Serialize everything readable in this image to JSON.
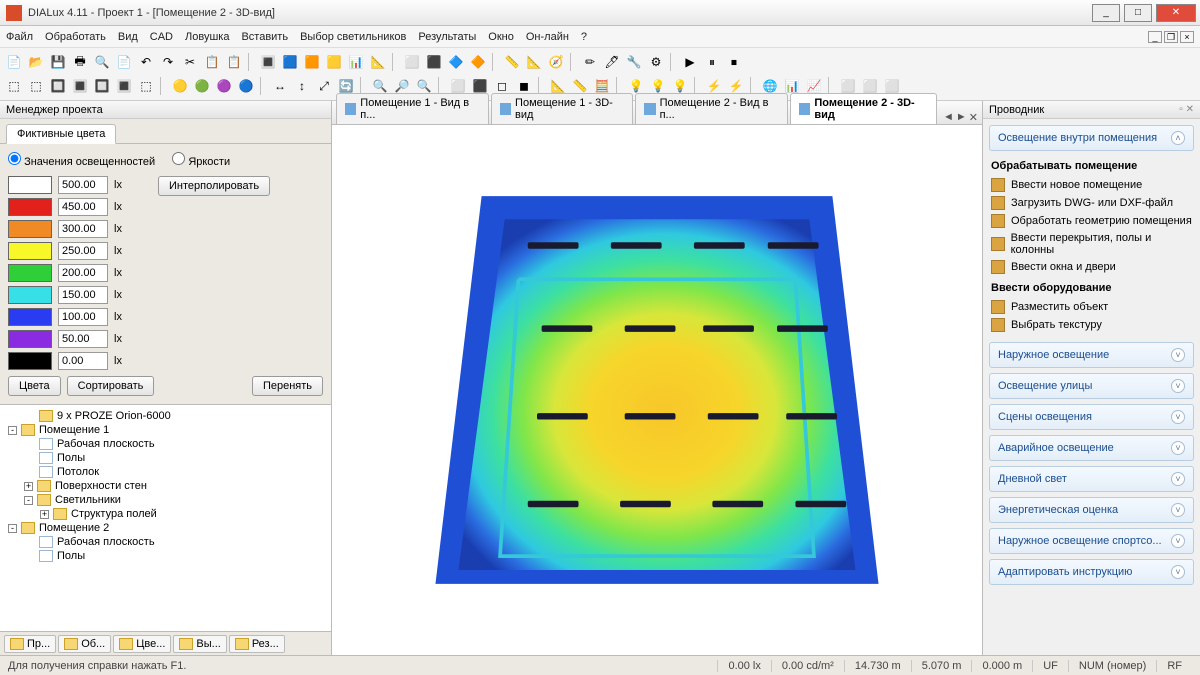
{
  "window": {
    "title": "DIALux 4.11 - Проект 1 - [Помещение 2 - 3D-вид]"
  },
  "menu": [
    "Файл",
    "Обработать",
    "Вид",
    "CAD",
    "Ловушка",
    "Вставить",
    "Выбор светильников",
    "Результаты",
    "Окно",
    "Он-лайн",
    "?"
  ],
  "left": {
    "header": "Менеджер проекта",
    "tab": "Фиктивные цвета",
    "radio1": "Значения освещенностей",
    "radio2": "Яркости",
    "interp_btn": "Интерполировать",
    "rows": [
      {
        "color": "#ffffff",
        "val": "500.00",
        "unit": "lx"
      },
      {
        "color": "#e2201c",
        "val": "450.00",
        "unit": "lx"
      },
      {
        "color": "#f08a24",
        "val": "300.00",
        "unit": "lx"
      },
      {
        "color": "#f7f72a",
        "val": "250.00",
        "unit": "lx"
      },
      {
        "color": "#2fcf3a",
        "val": "200.00",
        "unit": "lx"
      },
      {
        "color": "#36e0e6",
        "val": "150.00",
        "unit": "lx"
      },
      {
        "color": "#2a3cf2",
        "val": "100.00",
        "unit": "lx"
      },
      {
        "color": "#8a2be2",
        "val": "50.00",
        "unit": "lx"
      },
      {
        "color": "#000000",
        "val": "0.00",
        "unit": "lx"
      }
    ],
    "btn_colors": "Цвета",
    "btn_sort": "Сортировать",
    "btn_apply": "Перенять",
    "tree": [
      {
        "indent": 1,
        "icon": "folder",
        "label": "9 x PROZE  Orion-6000"
      },
      {
        "indent": 0,
        "icon": "folder",
        "label": "Помещение 1",
        "exp": "-"
      },
      {
        "indent": 1,
        "icon": "page",
        "label": "Рабочая плоскость"
      },
      {
        "indent": 1,
        "icon": "page",
        "label": "Полы"
      },
      {
        "indent": 1,
        "icon": "page",
        "label": "Потолок"
      },
      {
        "indent": 1,
        "icon": "folder",
        "label": "Поверхности стен",
        "exp": "+"
      },
      {
        "indent": 1,
        "icon": "folder",
        "label": "Светильники",
        "exp": "-"
      },
      {
        "indent": 2,
        "icon": "folder",
        "label": "Структура полей",
        "exp": "+"
      },
      {
        "indent": 0,
        "icon": "folder",
        "label": "Помещение 2",
        "exp": "-"
      },
      {
        "indent": 1,
        "icon": "page",
        "label": "Рабочая плоскость"
      },
      {
        "indent": 1,
        "icon": "page",
        "label": "Полы"
      }
    ],
    "bottabs": [
      "Пр...",
      "Об...",
      "Цве...",
      "Вы...",
      "Рез..."
    ]
  },
  "doctabs": [
    {
      "label": "Помещение 1 - Вид в п...",
      "active": false
    },
    {
      "label": "Помещение 1 - 3D-вид",
      "active": false
    },
    {
      "label": "Помещение 2 - Вид в п...",
      "active": false
    },
    {
      "label": "Помещение 2 - 3D-вид",
      "active": true
    }
  ],
  "right": {
    "header": "Проводник",
    "first_accord": "Освещение внутри помещения",
    "sec1_hdr": "Обрабатывать помещение",
    "sec1_items": [
      "Ввести новое помещение",
      "Загрузить DWG- или DXF-файл",
      "Обработать геометрию помещения",
      "Ввести перекрытия, полы и колонны",
      "Ввести окна и двери"
    ],
    "sec2_hdr": "Ввести оборудование",
    "sec2_items": [
      "Разместить объект",
      "Выбрать текстуру"
    ],
    "accords": [
      "Наружное освещение",
      "Освещение улицы",
      "Сцены освещения",
      "Аварийное освещение",
      "Дневной свет",
      "Энергетическая оценка",
      "Наружное освещение спортсо...",
      "Адаптировать инструкцию"
    ]
  },
  "status": {
    "hint": "Для получения справки нажать F1.",
    "v1": "0.00 lx",
    "v2": "0.00 cd/m²",
    "v3": "14.730 m",
    "v4": "5.070 m",
    "v5": "0.000 m",
    "uf": "UF",
    "num": "NUM (номер)",
    "rf": "RF"
  },
  "render": {
    "gradient_stops": [
      {
        "o": "0%",
        "c": "#f7c72a"
      },
      {
        "o": "30%",
        "c": "#f7d52a"
      },
      {
        "o": "45%",
        "c": "#d8e63a"
      },
      {
        "o": "58%",
        "c": "#7fe64a"
      },
      {
        "o": "70%",
        "c": "#3de0a0"
      },
      {
        "o": "82%",
        "c": "#2fc9e0"
      },
      {
        "o": "92%",
        "c": "#2a6ce0"
      },
      {
        "o": "100%",
        "c": "#1a3db0"
      }
    ],
    "luminaires": [
      [
        120,
        70
      ],
      [
        210,
        70
      ],
      [
        300,
        70
      ],
      [
        380,
        70
      ],
      [
        135,
        160
      ],
      [
        225,
        160
      ],
      [
        310,
        160
      ],
      [
        390,
        160
      ],
      [
        130,
        255
      ],
      [
        225,
        255
      ],
      [
        315,
        255
      ],
      [
        400,
        255
      ],
      [
        120,
        350
      ],
      [
        220,
        350
      ],
      [
        320,
        350
      ],
      [
        410,
        350
      ]
    ]
  }
}
